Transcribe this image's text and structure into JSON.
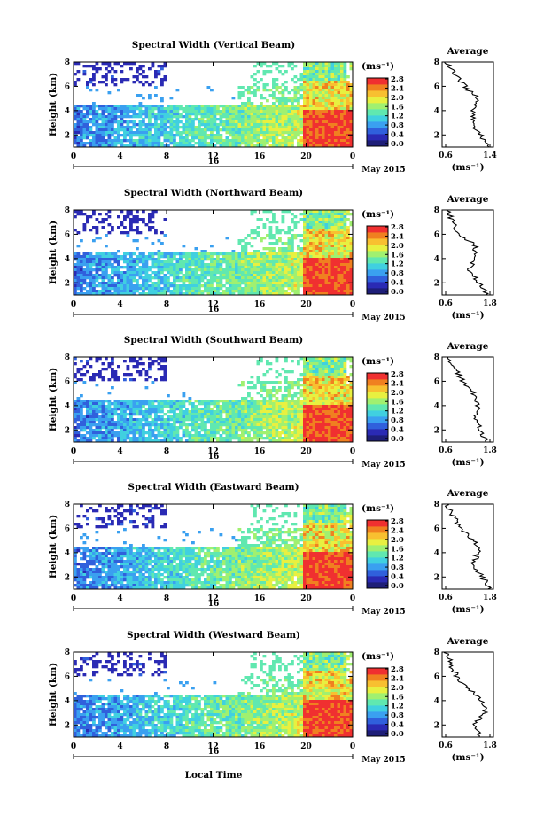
{
  "figure": {
    "date_label": "May 2015",
    "x_axis_label": "Local Time",
    "x_tick_labels": [
      "0",
      "4",
      "8",
      "12",
      "16",
      "20",
      "0"
    ],
    "day_labels": [
      "16"
    ],
    "y_axis_label": "Height (km)",
    "y_tick_labels": [
      "2",
      "4",
      "6",
      "8"
    ],
    "colorbar_unit": "(ms⁻¹)",
    "colorbar_tick_labels": [
      "0.0",
      "0.4",
      "0.8",
      "1.2",
      "1.6",
      "2.0",
      "2.4",
      "2.8"
    ],
    "average_title": "Average",
    "average_x_unit": "(ms⁻¹)"
  },
  "colors": {
    "colormap": [
      "#1e1e78",
      "#2a2ab4",
      "#3060dc",
      "#3aa0f0",
      "#40d0e0",
      "#60e8b0",
      "#a0f070",
      "#e8f040",
      "#f8c030",
      "#f08020",
      "#f03030"
    ]
  },
  "chart_data": [
    {
      "type": "heatmap",
      "title": "Spectral Width (Vertical Beam)",
      "xlabel": "Local Time",
      "ylabel": "Height (km)",
      "x_range_hours": [
        0,
        24
      ],
      "ylim_km": [
        1,
        8
      ],
      "color_range": [
        0,
        2.8
      ],
      "average_profile": {
        "xlim": [
          0.6,
          1.4
        ],
        "x_tick_labels": [
          "0.6",
          "1.4"
        ],
        "heights_km": [
          1,
          2,
          3,
          4,
          5,
          6,
          7,
          8
        ],
        "values": [
          1.35,
          1.2,
          1.05,
          1.1,
          1.15,
          0.95,
          0.8,
          0.65
        ]
      }
    },
    {
      "type": "heatmap",
      "title": "Spectral Width (Northward Beam)",
      "xlabel": "Local Time",
      "ylabel": "Height (km)",
      "x_range_hours": [
        0,
        24
      ],
      "ylim_km": [
        1,
        8
      ],
      "color_range": [
        0,
        2.8
      ],
      "average_profile": {
        "xlim": [
          0.6,
          1.8
        ],
        "x_tick_labels": [
          "0.6",
          "1.8"
        ],
        "heights_km": [
          1,
          2,
          3,
          4,
          5,
          6,
          7,
          8
        ],
        "values": [
          1.65,
          1.45,
          1.25,
          1.35,
          1.4,
          1.0,
          0.85,
          0.7
        ]
      }
    },
    {
      "type": "heatmap",
      "title": "Spectral Width (Southward Beam)",
      "xlabel": "Local Time",
      "ylabel": "Height (km)",
      "x_range_hours": [
        0,
        24
      ],
      "ylim_km": [
        1,
        8
      ],
      "color_range": [
        0,
        2.8
      ],
      "average_profile": {
        "xlim": [
          0.6,
          1.8
        ],
        "x_tick_labels": [
          "0.6",
          "1.8"
        ],
        "heights_km": [
          1,
          2,
          3,
          4,
          5,
          6,
          7,
          8
        ],
        "values": [
          1.65,
          1.5,
          1.4,
          1.45,
          1.35,
          1.1,
          0.9,
          0.7
        ]
      }
    },
    {
      "type": "heatmap",
      "title": "Spectral Width (Eastward Beam)",
      "xlabel": "Local Time",
      "ylabel": "Height (km)",
      "x_range_hours": [
        0,
        24
      ],
      "ylim_km": [
        1,
        8
      ],
      "color_range": [
        0,
        2.8
      ],
      "average_profile": {
        "xlim": [
          0.6,
          1.8
        ],
        "x_tick_labels": [
          "0.6",
          "1.8"
        ],
        "heights_km": [
          1,
          2,
          3,
          4,
          5,
          6,
          7,
          8
        ],
        "values": [
          1.7,
          1.55,
          1.3,
          1.45,
          1.35,
          1.05,
          0.85,
          0.7
        ]
      }
    },
    {
      "type": "heatmap",
      "title": "Spectral Width (Westward Beam)",
      "xlabel": "Local Time",
      "ylabel": "Height (km)",
      "x_range_hours": [
        0,
        24
      ],
      "ylim_km": [
        1,
        8
      ],
      "color_range": [
        0,
        2.8
      ],
      "average_profile": {
        "xlim": [
          0.6,
          1.8
        ],
        "x_tick_labels": [
          "0.6",
          "1.8"
        ],
        "heights_km": [
          1,
          2,
          3,
          4,
          5,
          6,
          7,
          8
        ],
        "values": [
          1.5,
          1.35,
          1.6,
          1.55,
          1.2,
          0.95,
          0.8,
          0.7
        ]
      }
    }
  ]
}
